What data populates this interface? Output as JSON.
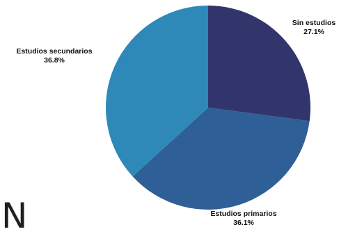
{
  "chart_data": {
    "type": "pie",
    "slices": [
      {
        "label": "Sin estudios",
        "value": 27.1,
        "value_label": "27.1%",
        "color": "#31356b"
      },
      {
        "label": "Estudios primarios",
        "value": 36.1,
        "value_label": "36.1%",
        "color": "#2e5f97"
      },
      {
        "label": "Estudios secundarios",
        "value": 36.8,
        "value_label": "36.8%",
        "color": "#2e89b8"
      }
    ],
    "start_angle_deg": 0,
    "direction": "clockwise",
    "legend": "none"
  },
  "corner_text": "N"
}
